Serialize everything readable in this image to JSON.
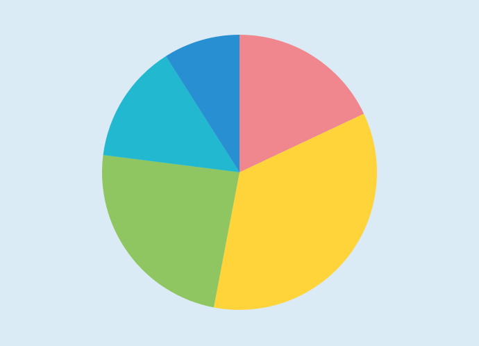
{
  "chart_data": {
    "type": "pie",
    "values": [
      18,
      35,
      24,
      14,
      9
    ],
    "colors": [
      "#f0868e",
      "#ffd43b",
      "#8fc662",
      "#22b8cf",
      "#2890d2"
    ]
  }
}
